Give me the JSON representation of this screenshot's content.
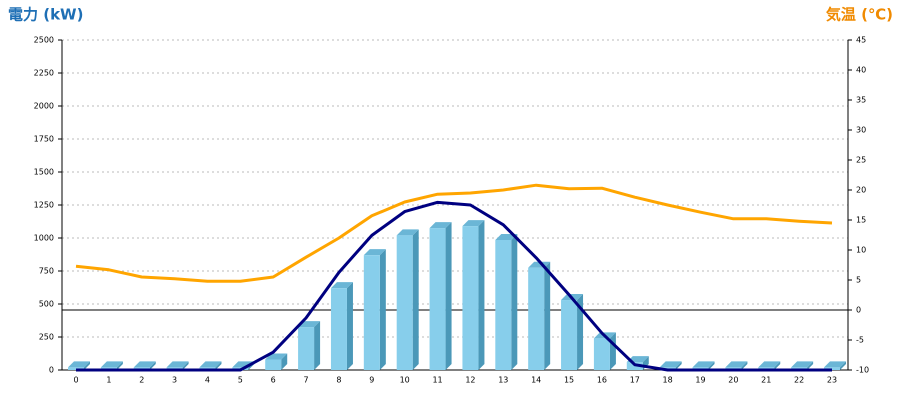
{
  "chart_data": {
    "type": "bar",
    "title": "電力 (kW)",
    "y2_title": "気温 (℃)",
    "categories": [
      "0",
      "1",
      "2",
      "3",
      "4",
      "5",
      "6",
      "7",
      "8",
      "9",
      "10",
      "11",
      "12",
      "13",
      "14",
      "15",
      "16",
      "17",
      "18",
      "19",
      "20",
      "21",
      "22",
      "23"
    ],
    "series": [
      {
        "type": "bar",
        "color": "#87ceeb",
        "values": [
          20,
          20,
          20,
          20,
          20,
          20,
          80,
          325,
          620,
          870,
          1020,
          1075,
          1090,
          985,
          775,
          530,
          240,
          60,
          20,
          20,
          20,
          20,
          20,
          20
        ]
      },
      {
        "type": "line",
        "color": "#000080",
        "values": [
          0,
          0,
          0,
          0,
          0,
          0,
          135,
          395,
          740,
          1020,
          1200,
          1270,
          1250,
          1100,
          850,
          570,
          280,
          40,
          0,
          0,
          0,
          0,
          0,
          0
        ]
      },
      {
        "type": "line",
        "axis": "y2",
        "color": "#ffa500",
        "values": [
          7.3,
          6.7,
          5.5,
          5.2,
          4.8,
          4.8,
          5.5,
          8.8,
          12,
          15.7,
          18,
          19.3,
          19.5,
          20,
          20.8,
          20.2,
          20.3,
          18.8,
          17.5,
          16.3,
          15.2,
          15.2,
          14.8,
          14.5
        ]
      }
    ],
    "ylim": [
      0,
      2500
    ],
    "yticks": [
      0,
      250,
      500,
      750,
      1000,
      1250,
      1500,
      1750,
      2000,
      2250,
      2500
    ],
    "y2lim": [
      -10,
      45
    ],
    "y2ticks": [
      -10,
      -5,
      0,
      5,
      10,
      15,
      20,
      25,
      30,
      35,
      40,
      45
    ],
    "grid": true
  }
}
